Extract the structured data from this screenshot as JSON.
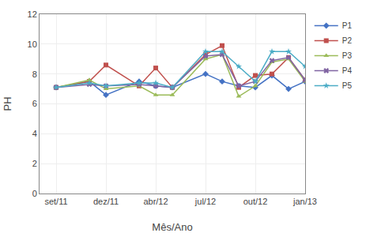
{
  "chart_data": {
    "type": "line",
    "xlabel": "Mês/Ano",
    "ylabel": "PH",
    "x": [
      1,
      3,
      4,
      6,
      7,
      8,
      10,
      11,
      12,
      13,
      14,
      15,
      16
    ],
    "xlim": [
      0,
      16
    ],
    "xticks": [
      {
        "value": 1,
        "label": "set/11"
      },
      {
        "value": 4,
        "label": "dez/11"
      },
      {
        "value": 7,
        "label": "abr/12"
      },
      {
        "value": 10,
        "label": "jul/12"
      },
      {
        "value": 13,
        "label": "out/12"
      },
      {
        "value": 16,
        "label": "jan/13"
      }
    ],
    "ylim": [
      0,
      12
    ],
    "yticks": [
      0,
      2,
      4,
      6,
      8,
      10,
      12
    ],
    "grid": true,
    "legend": "right",
    "series": [
      {
        "name": "P1",
        "color": "#4472C4",
        "marker": "diamond",
        "values": [
          7.1,
          7.5,
          6.6,
          7.5,
          7.2,
          7.1,
          8.0,
          7.5,
          7.2,
          7.1,
          7.9,
          7.0,
          7.5
        ]
      },
      {
        "name": "P2",
        "color": "#C0504D",
        "marker": "square",
        "values": [
          7.1,
          7.5,
          8.6,
          7.2,
          8.4,
          7.1,
          9.3,
          9.9,
          7.1,
          7.9,
          8.0,
          9.1,
          7.6
        ]
      },
      {
        "name": "P3",
        "color": "#9BBB59",
        "marker": "triangle-up",
        "values": [
          7.1,
          7.6,
          7.0,
          7.2,
          6.6,
          6.6,
          9.0,
          9.3,
          6.5,
          7.2,
          8.8,
          9.0,
          7.5
        ]
      },
      {
        "name": "P4",
        "color": "#8064A2",
        "marker": "x",
        "values": [
          7.1,
          7.3,
          7.2,
          7.3,
          7.2,
          7.1,
          9.2,
          9.3,
          7.2,
          7.5,
          8.9,
          9.1,
          7.6
        ]
      },
      {
        "name": "P5",
        "color": "#4BACC6",
        "marker": "star",
        "values": [
          7.1,
          7.4,
          7.2,
          7.4,
          7.4,
          7.1,
          9.5,
          9.5,
          8.5,
          7.5,
          9.5,
          9.5,
          8.5
        ]
      }
    ]
  }
}
